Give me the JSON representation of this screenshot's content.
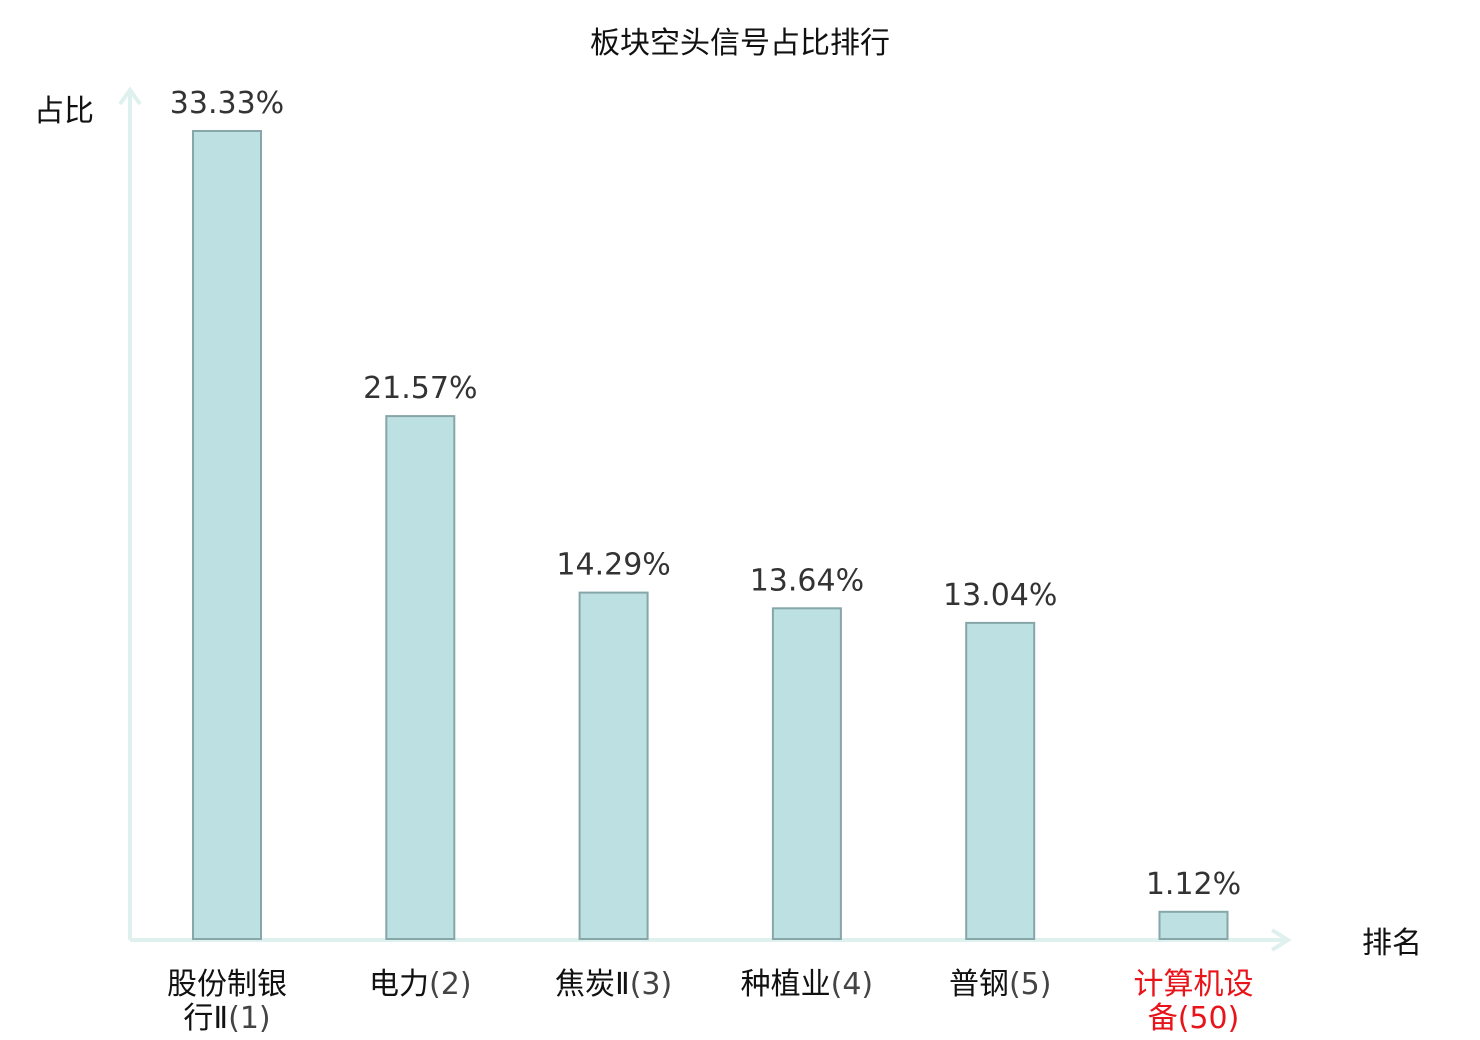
{
  "chart_data": {
    "type": "bar",
    "title": "板块空头信号占比排行",
    "ylabel": "占比",
    "xlabel": "排名",
    "ylim": [
      0,
      35
    ],
    "grid": false,
    "legend": "none",
    "categories": [
      {
        "name_lines": [
          "股份制银",
          "行Ⅱ"
        ],
        "rank": "(1)",
        "highlight": false
      },
      {
        "name_lines": [
          "电力"
        ],
        "rank": "(2)",
        "highlight": false
      },
      {
        "name_lines": [
          "焦炭Ⅱ"
        ],
        "rank": "(3)",
        "highlight": false
      },
      {
        "name_lines": [
          "种植业"
        ],
        "rank": "(4)",
        "highlight": false
      },
      {
        "name_lines": [
          "普钢"
        ],
        "rank": "(5)",
        "highlight": false
      },
      {
        "name_lines": [
          "计算机设",
          "备"
        ],
        "rank": "(50)",
        "highlight": true
      }
    ],
    "values": [
      33.33,
      21.57,
      14.29,
      13.64,
      13.04,
      1.12
    ],
    "value_labels": [
      "33.33%",
      "21.57%",
      "14.29%",
      "13.64%",
      "13.04%",
      "1.12%"
    ],
    "colors": {
      "bar_fill": "#bde0e2",
      "bar_stroke": "#86a6a8",
      "axis": "#dff1ee",
      "label_normal": "#111111",
      "rank_normal": "#444444",
      "highlight": "#e8141a",
      "value_text": "#333333"
    }
  }
}
